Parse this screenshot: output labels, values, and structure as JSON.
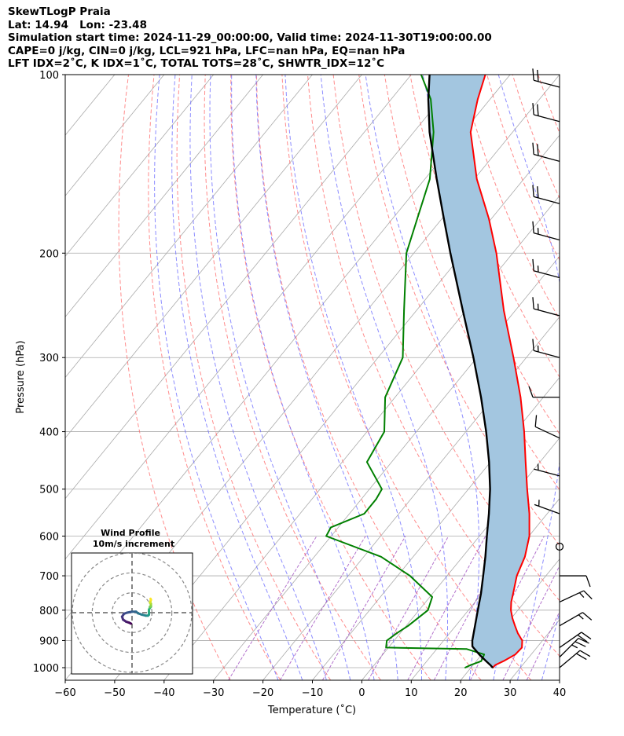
{
  "header": {
    "line1": "SkewTLogP Praia",
    "line2": "Lat: 14.94   Lon: -23.48",
    "line3": "Simulation start time: 2024-11-29_00:00:00, Valid time: 2024-11-30T19:00:00.00",
    "line4": "CAPE=0 j/kg, CIN=0 j/kg, LCL=921 hPa, LFC=nan hPa, EQ=nan hPa",
    "line5": "LFT IDX=2˚C, K IDX=1˚C, TOTAL TOTS=28˚C, SHWTR_IDX=12˚C"
  },
  "chart_data": {
    "type": "skewt-logp",
    "xlabel": "Temperature (˚C)",
    "ylabel": "Pressure (hPa)",
    "xlim": [
      -60,
      40
    ],
    "ylim": [
      1050,
      100
    ],
    "x_ticks": [
      "−60",
      "−50",
      "−40",
      "−30",
      "−20",
      "−10",
      "0",
      "10",
      "20",
      "30",
      "40"
    ],
    "y_ticks": [
      "1000",
      "900",
      "800",
      "700",
      "600",
      "500",
      "400",
      "300",
      "200",
      "100"
    ],
    "grid": true,
    "shading": "between temperature and parcel profile",
    "colors": {
      "temperature": "#ff0000",
      "dewpoint": "#008000",
      "parcel": "#000000",
      "dry_adiabats": "#ff6666",
      "moist_adiabats": "#6666ff",
      "mixing_ratio": "#a050c0",
      "isotherms": "#aaaaaa",
      "fill": "#a3c6e0"
    },
    "series": [
      {
        "name": "temperature",
        "points": [
          [
            1000,
            24.4
          ],
          [
            990,
            24.5
          ],
          [
            975,
            25.5
          ],
          [
            950,
            26.8
          ],
          [
            925,
            27.0
          ],
          [
            900,
            25.9
          ],
          [
            875,
            23.8
          ],
          [
            850,
            22.0
          ],
          [
            825,
            20.2
          ],
          [
            800,
            18.6
          ],
          [
            775,
            17.3
          ],
          [
            750,
            16.3
          ],
          [
            700,
            14.1
          ],
          [
            650,
            12.6
          ],
          [
            600,
            10.1
          ],
          [
            550,
            6.4
          ],
          [
            500,
            1.9
          ],
          [
            450,
            -2.9
          ],
          [
            400,
            -8.2
          ],
          [
            350,
            -14.6
          ],
          [
            300,
            -22.6
          ],
          [
            250,
            -32.3
          ],
          [
            200,
            -43.3
          ],
          [
            175,
            -50.5
          ],
          [
            150,
            -59.5
          ],
          [
            125,
            -68.5
          ],
          [
            110,
            -72.5
          ],
          [
            100,
            -75.0
          ]
        ]
      },
      {
        "name": "dewpoint",
        "points": [
          [
            1000,
            18.8
          ],
          [
            990,
            19.5
          ],
          [
            975,
            21.0
          ],
          [
            950,
            20.5
          ],
          [
            930,
            16.0
          ],
          [
            925,
            -0.5
          ],
          [
            900,
            -1.5
          ],
          [
            875,
            -0.7
          ],
          [
            850,
            0.4
          ],
          [
            800,
            1.8
          ],
          [
            760,
            0.5
          ],
          [
            700,
            -7.5
          ],
          [
            650,
            -16.5
          ],
          [
            600,
            -31.0
          ],
          [
            580,
            -31.5
          ],
          [
            550,
            -27.0
          ],
          [
            520,
            -27.0
          ],
          [
            500,
            -27.5
          ],
          [
            450,
            -35.0
          ],
          [
            400,
            -36.5
          ],
          [
            350,
            -42.0
          ],
          [
            300,
            -45.0
          ],
          [
            250,
            -52.5
          ],
          [
            200,
            -61.5
          ],
          [
            175,
            -65.0
          ],
          [
            150,
            -69.0
          ],
          [
            125,
            -76.0
          ],
          [
            110,
            -82.0
          ],
          [
            100,
            -88.0
          ]
        ]
      },
      {
        "name": "parcel",
        "points": [
          [
            1000,
            24.4
          ],
          [
            990,
            23.5
          ],
          [
            975,
            22.0
          ],
          [
            950,
            19.5
          ],
          [
            921,
            16.8
          ],
          [
            900,
            15.8
          ],
          [
            850,
            13.9
          ],
          [
            800,
            11.9
          ],
          [
            750,
            9.8
          ],
          [
            700,
            7.3
          ],
          [
            650,
            4.6
          ],
          [
            600,
            1.5
          ],
          [
            550,
            -1.8
          ],
          [
            500,
            -5.6
          ],
          [
            450,
            -10.3
          ],
          [
            400,
            -15.9
          ],
          [
            350,
            -22.6
          ],
          [
            300,
            -30.7
          ],
          [
            250,
            -40.6
          ],
          [
            200,
            -52.6
          ],
          [
            175,
            -59.6
          ],
          [
            150,
            -67.6
          ],
          [
            125,
            -76.8
          ],
          [
            110,
            -82.5
          ],
          [
            100,
            -86.3
          ]
        ]
      }
    ],
    "wind_barbs": [
      {
        "p": 1000,
        "speed_kt": 20,
        "dir_deg": 50
      },
      {
        "p": 960,
        "speed_kt": 25,
        "dir_deg": 45
      },
      {
        "p": 925,
        "speed_kt": 20,
        "dir_deg": 55
      },
      {
        "p": 850,
        "speed_kt": 15,
        "dir_deg": 60
      },
      {
        "p": 775,
        "speed_kt": 15,
        "dir_deg": 65
      },
      {
        "p": 700,
        "speed_kt": 10,
        "dir_deg": 90
      },
      {
        "p": 625,
        "speed_kt": 0,
        "dir_deg": 0
      },
      {
        "p": 550,
        "speed_kt": 5,
        "dir_deg": 290
      },
      {
        "p": 475,
        "speed_kt": 5,
        "dir_deg": 285
      },
      {
        "p": 410,
        "speed_kt": 10,
        "dir_deg": 295
      },
      {
        "p": 350,
        "speed_kt": 10,
        "dir_deg": 270
      },
      {
        "p": 300,
        "speed_kt": 15,
        "dir_deg": 285
      },
      {
        "p": 255,
        "speed_kt": 15,
        "dir_deg": 285
      },
      {
        "p": 220,
        "speed_kt": 15,
        "dir_deg": 285
      },
      {
        "p": 190,
        "speed_kt": 15,
        "dir_deg": 285
      },
      {
        "p": 165,
        "speed_kt": 20,
        "dir_deg": 285
      },
      {
        "p": 140,
        "speed_kt": 20,
        "dir_deg": 285
      },
      {
        "p": 120,
        "speed_kt": 20,
        "dir_deg": 285
      },
      {
        "p": 105,
        "speed_kt": 20,
        "dir_deg": 285
      }
    ],
    "hodograph": {
      "title_line1": "Wind Profile",
      "title_line2": "10m/s increment",
      "rings_ms": [
        10,
        20,
        30
      ],
      "points_uv": [
        [
          -0.5,
          -5.5
        ],
        [
          -1.5,
          -5.0
        ],
        [
          -3.0,
          -4.5
        ],
        [
          -4.5,
          -3.5
        ],
        [
          -5.0,
          -2.0
        ],
        [
          -4.0,
          -0.5
        ],
        [
          -2.5,
          0.0
        ],
        [
          0.0,
          0.5
        ],
        [
          2.0,
          0.5
        ],
        [
          3.0,
          -0.3
        ],
        [
          5.0,
          -1.0
        ],
        [
          7.0,
          -1.5
        ],
        [
          8.0,
          -1.5
        ],
        [
          8.5,
          -1.0
        ],
        [
          8.5,
          0.0
        ],
        [
          8.5,
          1.5
        ],
        [
          9.0,
          2.5
        ],
        [
          9.5,
          3.0
        ],
        [
          9.0,
          3.0
        ],
        [
          9.5,
          3.5
        ],
        [
          9.5,
          4.5
        ],
        [
          9.0,
          5.0
        ],
        [
          9.2,
          5.5
        ],
        [
          9.5,
          6.5
        ],
        [
          9.3,
          7.0
        ]
      ]
    }
  }
}
